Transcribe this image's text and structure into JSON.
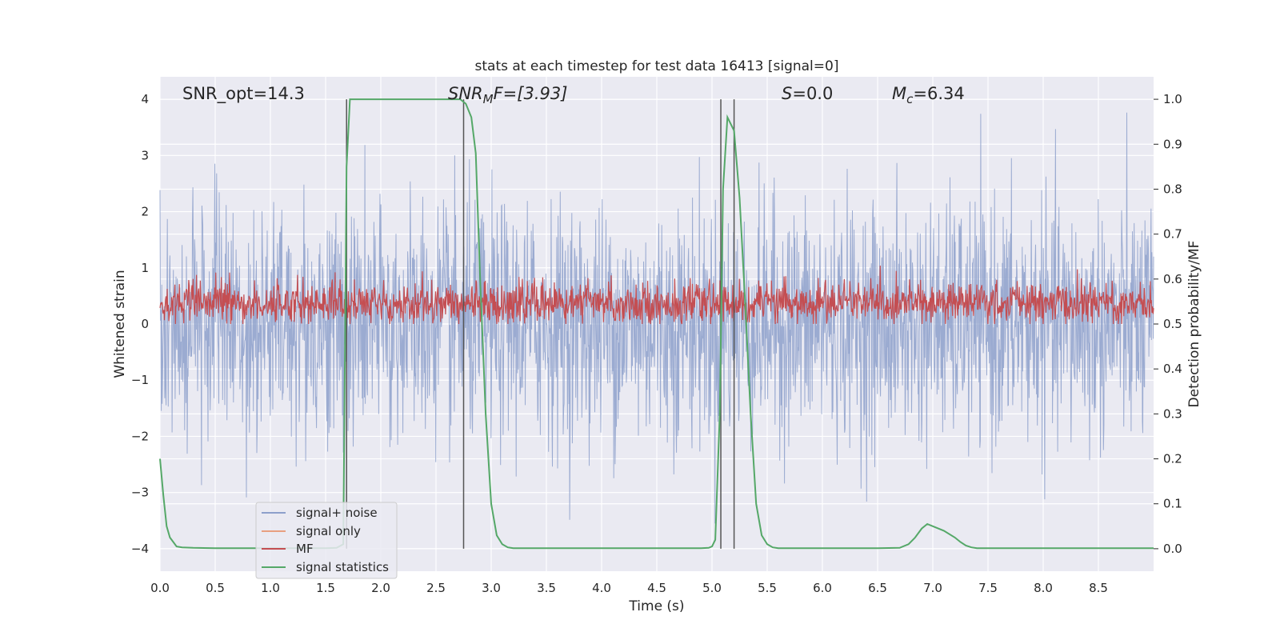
{
  "chart_data": {
    "type": "line",
    "title": "stats at each timestep for test data 16413 [signal=0]",
    "xlabel": "Time (s)",
    "ylabel": "Whitened strain",
    "y2label": "Detection probability/MF",
    "xlim": [
      0.0,
      9.0
    ],
    "ylim": [
      -4.4,
      4.4
    ],
    "y2lim": [
      -0.05,
      1.05
    ],
    "grid": true,
    "legend_position": "lower-left",
    "x_ticks": [
      "0.0",
      "0.5",
      "1.0",
      "1.5",
      "2.0",
      "2.5",
      "3.0",
      "3.5",
      "4.0",
      "4.5",
      "5.0",
      "5.5",
      "6.0",
      "6.5",
      "7.0",
      "7.5",
      "8.0",
      "8.5"
    ],
    "y_ticks": [
      "4",
      "3",
      "2",
      "1",
      "0",
      "−1",
      "−2",
      "−3",
      "−4"
    ],
    "y2_ticks": [
      "1.0",
      "0.9",
      "0.8",
      "0.7",
      "0.6",
      "0.5",
      "0.4",
      "0.3",
      "0.2",
      "0.1",
      "0.0"
    ],
    "annotations": {
      "snr_opt": "SNR_opt=14.3",
      "snr_mf_base": "SNR",
      "snr_mf_sub": "M",
      "snr_mf_rest": "F=[3.93]",
      "s_var": "S",
      "s_rest": "=0.0",
      "mc_var": "M",
      "mc_sub": "c",
      "mc_rest": "=6.34"
    },
    "vertical_lines": [
      1.69,
      2.75,
      5.08,
      5.2
    ],
    "series": [
      {
        "name": "signal+ noise",
        "color": "#8da0cb",
        "description": "whitened noise, roughly symmetric about 0 with spikes up to about ±4"
      },
      {
        "name": "signal only",
        "color": "#e8a080",
        "values": "flat (not visible)"
      },
      {
        "name": "MF",
        "color": "#c44e52",
        "description": "matched-filter output on right axis, fluctuating between about 0.5 and 0.6"
      },
      {
        "name": "signal statistics",
        "color": "#55a868",
        "x": [
          0.0,
          0.03,
          0.06,
          0.09,
          0.12,
          0.15,
          0.2,
          0.3,
          0.5,
          0.8,
          1.0,
          1.3,
          1.5,
          1.6,
          1.66,
          1.69,
          1.72,
          1.75,
          2.0,
          2.5,
          2.65,
          2.72,
          2.77,
          2.82,
          2.86,
          2.9,
          2.95,
          3.0,
          3.05,
          3.1,
          3.15,
          3.2,
          3.3,
          3.5,
          4.0,
          4.5,
          4.9,
          4.97,
          5.0,
          5.03,
          5.07,
          5.1,
          5.14,
          5.2,
          5.25,
          5.3,
          5.35,
          5.4,
          5.45,
          5.5,
          5.55,
          5.6,
          5.7,
          6.0,
          6.5,
          6.7,
          6.78,
          6.84,
          6.9,
          6.95,
          7.0,
          7.1,
          7.2,
          7.25,
          7.3,
          7.35,
          7.4,
          7.5,
          8.0,
          8.5,
          9.0
        ],
        "values": [
          0.2,
          0.12,
          0.05,
          0.025,
          0.015,
          0.005,
          0.003,
          0.002,
          0.001,
          0.001,
          0.001,
          0.001,
          0.001,
          0.002,
          0.01,
          0.85,
          1.0,
          1.0,
          1.0,
          1.0,
          1.0,
          1.0,
          0.99,
          0.96,
          0.88,
          0.6,
          0.3,
          0.1,
          0.03,
          0.01,
          0.003,
          0.001,
          0.001,
          0.001,
          0.001,
          0.001,
          0.001,
          0.002,
          0.005,
          0.02,
          0.3,
          0.8,
          0.96,
          0.93,
          0.78,
          0.55,
          0.3,
          0.1,
          0.03,
          0.01,
          0.003,
          0.001,
          0.001,
          0.001,
          0.001,
          0.002,
          0.01,
          0.025,
          0.045,
          0.055,
          0.05,
          0.04,
          0.025,
          0.015,
          0.007,
          0.003,
          0.001,
          0.001,
          0.001,
          0.001,
          0.001
        ]
      }
    ]
  }
}
